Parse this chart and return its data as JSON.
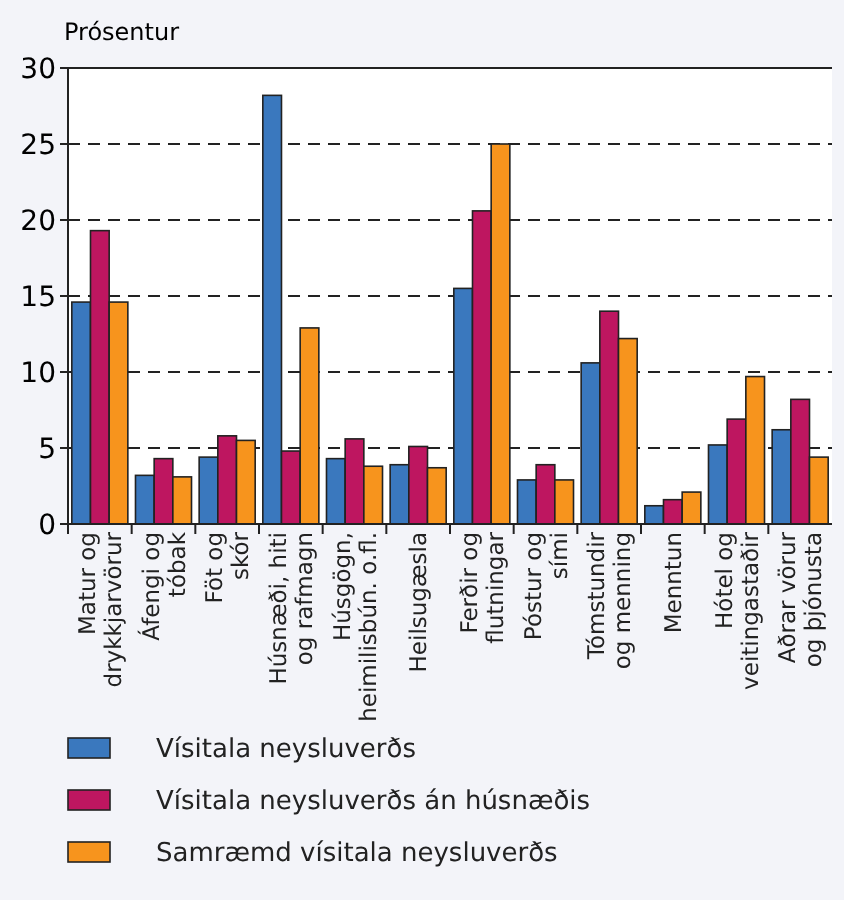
{
  "chart_data": {
    "type": "bar",
    "ylabel": "Prósentur",
    "categories": [
      "Matur og\ndrykkjarvörur",
      "Áfengi og\ntóbak",
      "Föt og\nskór",
      "Húsnæði, hiti\nog rafmagn",
      "Húsgögn,\nheimilisbún. o.fl.",
      "Heilsugæsla",
      "Ferðir og\nflutningar",
      "Póstur og\nsími",
      "Tómstundir\nog menning",
      "Menntun",
      "Hótel og\nveitingastaðir",
      "Aðrar vörur\nog þjónusta"
    ],
    "series": [
      {
        "name": "Vísitala neysluverðs",
        "color": "#3a78be",
        "values": [
          14.6,
          3.2,
          4.4,
          28.2,
          4.3,
          3.9,
          15.5,
          2.9,
          10.6,
          1.2,
          5.2,
          6.2
        ]
      },
      {
        "name": "Vísitala neysluverðs án húsnæðis",
        "color": "#be1660",
        "values": [
          19.3,
          4.3,
          5.8,
          4.8,
          5.6,
          5.1,
          20.6,
          3.9,
          14.0,
          1.6,
          6.9,
          8.2
        ]
      },
      {
        "name": "Samræmd vísitala neysluverðs",
        "color": "#f7941d",
        "values": [
          14.6,
          3.1,
          5.5,
          12.9,
          3.8,
          3.7,
          25.0,
          2.9,
          12.2,
          2.1,
          9.7,
          4.4
        ]
      }
    ],
    "ylim": [
      0,
      30
    ],
    "yticks": [
      0,
      5,
      10,
      15,
      20,
      25,
      30
    ],
    "grid": "y",
    "legend": "bottom"
  }
}
